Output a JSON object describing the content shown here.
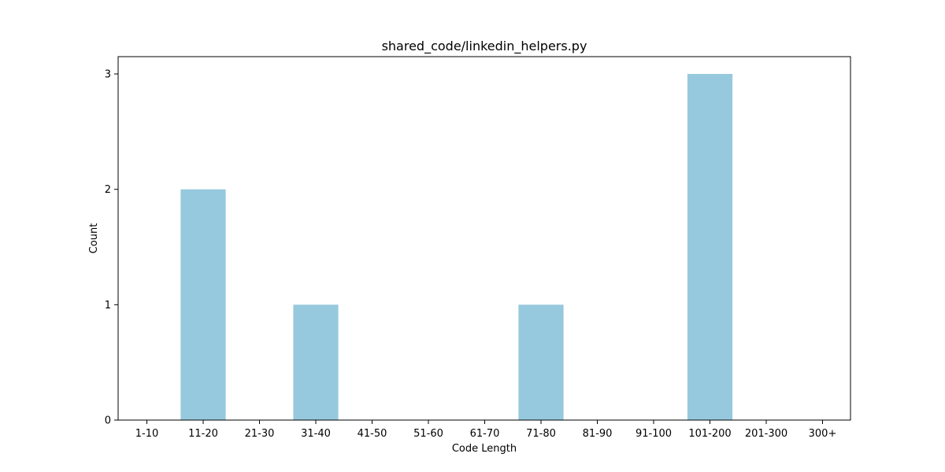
{
  "chart_data": {
    "type": "bar",
    "title": "shared_code/linkedin_helpers.py",
    "xlabel": "Code Length",
    "ylabel": "Count",
    "categories": [
      "1-10",
      "11-20",
      "21-30",
      "31-40",
      "41-50",
      "51-60",
      "61-70",
      "71-80",
      "81-90",
      "91-100",
      "101-200",
      "201-300",
      "300+"
    ],
    "values": [
      0,
      2,
      0,
      1,
      0,
      0,
      0,
      1,
      0,
      0,
      3,
      0,
      0
    ],
    "ylim": [
      0,
      3.15
    ],
    "yticks": [
      0,
      1,
      2,
      3
    ],
    "grid": false,
    "bar_color": "#96c9dd"
  }
}
